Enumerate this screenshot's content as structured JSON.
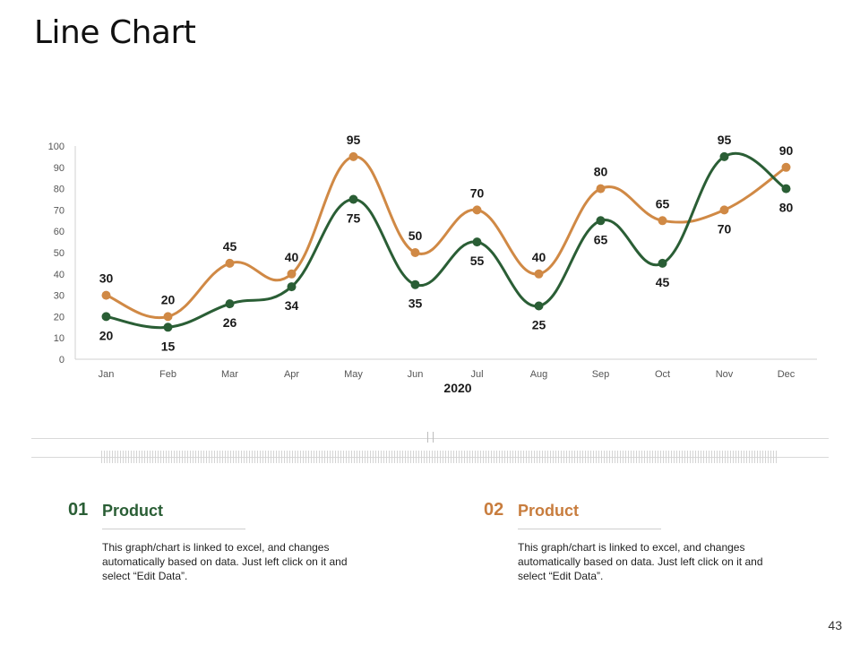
{
  "slide": {
    "title": "Line Chart",
    "page_number": "43"
  },
  "colors": {
    "series1": "#2a5e35",
    "series2": "#d08945",
    "accent_green": "#2a5e35",
    "accent_orange": "#c87d3e"
  },
  "chart_data": {
    "type": "line",
    "title": "",
    "xlabel": "2020",
    "ylabel": "",
    "ylim": [
      0,
      100
    ],
    "yticks": [
      0,
      10,
      20,
      30,
      40,
      50,
      60,
      70,
      80,
      90,
      100
    ],
    "grid": false,
    "categories": [
      "Jan",
      "Feb",
      "Mar",
      "Apr",
      "May",
      "Jun",
      "Jul",
      "Aug",
      "Sep",
      "Oct",
      "Nov",
      "Dec"
    ],
    "series": [
      {
        "name": "Product 01",
        "color": "#2a5e35",
        "values": [
          20,
          15,
          26,
          34,
          75,
          35,
          55,
          25,
          65,
          45,
          95,
          80
        ]
      },
      {
        "name": "Product 02",
        "color": "#d08945",
        "values": [
          30,
          20,
          45,
          40,
          95,
          50,
          70,
          40,
          80,
          65,
          70,
          90
        ]
      }
    ]
  },
  "cards": [
    {
      "number": "01",
      "heading": "Product",
      "description": "This graph/chart is linked to excel, and changes automatically based on data. Just left click on it and select “Edit Data”."
    },
    {
      "number": "02",
      "heading": "Product",
      "description": "This graph/chart is linked to excel, and changes automatically based on data. Just left click on it and select “Edit Data”."
    }
  ]
}
